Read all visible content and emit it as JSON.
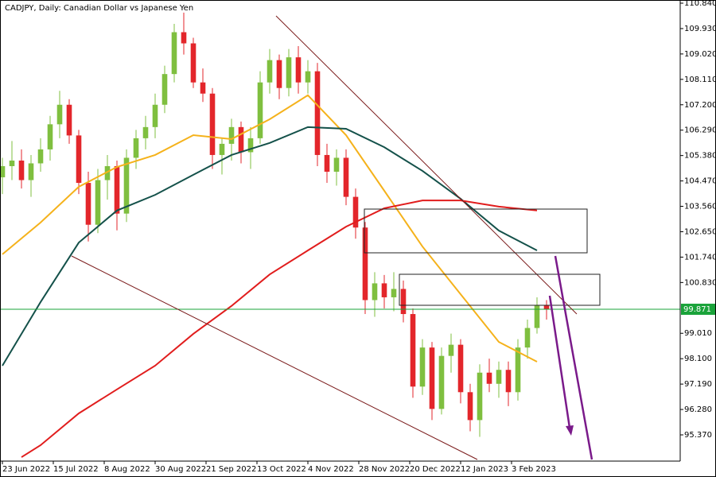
{
  "chart_data": {
    "type": "candlestick",
    "title": "CADJPY, Daily:  Canadian Dollar vs Japanese Yen",
    "up_color": "#7fbf3f",
    "down_color": "#e3262b",
    "xlim": [
      -0.75,
      213
    ],
    "ylim": [
      94.43,
      110.954
    ],
    "xticks": [
      {
        "value": 0,
        "label": "23 Jun 2022"
      },
      {
        "value": 16,
        "label": "15 Jul 2022"
      },
      {
        "value": 32,
        "label": "8 Aug 2022"
      },
      {
        "value": 48,
        "label": "30 Aug 2022"
      },
      {
        "value": 64,
        "label": "21 Sep 2022"
      },
      {
        "value": 80,
        "label": "13 Oct 2022"
      },
      {
        "value": 96,
        "label": "4 Nov 2022"
      },
      {
        "value": 112,
        "label": "28 Nov 2022"
      },
      {
        "value": 128,
        "label": "20 Dec 2022"
      },
      {
        "value": 144,
        "label": "12 Jan 2023"
      },
      {
        "value": 160,
        "label": "3 Feb 2023"
      }
    ],
    "yticks": [
      {
        "value": 110.84,
        "label": "110.840"
      },
      {
        "value": 109.93,
        "label": "109.930"
      },
      {
        "value": 109.02,
        "label": "109.020"
      },
      {
        "value": 108.11,
        "label": "108.110"
      },
      {
        "value": 107.2,
        "label": "107.200"
      },
      {
        "value": 106.29,
        "label": "106.290"
      },
      {
        "value": 105.38,
        "label": "105.380"
      },
      {
        "value": 104.47,
        "label": "104.470"
      },
      {
        "value": 103.56,
        "label": "103.560"
      },
      {
        "value": 102.65,
        "label": "102.650"
      },
      {
        "value": 101.74,
        "label": "101.740"
      },
      {
        "value": 100.83,
        "label": "100.830"
      },
      {
        "value": 99.01,
        "label": "99.010"
      },
      {
        "value": 98.1,
        "label": "98.100"
      },
      {
        "value": 97.19,
        "label": "97.190"
      },
      {
        "value": 96.28,
        "label": "96.280"
      },
      {
        "value": 95.37,
        "label": "95.370"
      }
    ],
    "last_price": {
      "value": 99.871,
      "label": "99.871",
      "color": "#1aa33a"
    },
    "candles": {
      "x": [
        0,
        3,
        6,
        9,
        12,
        15,
        18,
        21,
        24,
        27,
        30,
        33,
        36,
        39,
        42,
        45,
        48,
        51,
        54,
        57,
        60,
        63,
        66,
        69,
        72,
        75,
        78,
        81,
        84,
        87,
        90,
        93,
        96,
        99,
        102,
        105,
        108,
        111,
        114,
        117,
        120,
        123,
        126,
        129,
        132,
        135,
        138,
        141,
        144,
        147,
        150,
        153,
        156,
        159,
        162,
        165,
        168,
        171
      ],
      "open": [
        104.6,
        105.0,
        105.2,
        104.5,
        105.1,
        105.6,
        106.5,
        107.2,
        106.1,
        104.4,
        102.9,
        104.5,
        105.0,
        103.3,
        105.3,
        106.0,
        106.4,
        107.2,
        108.3,
        109.8,
        109.4,
        108.0,
        107.6,
        105.4,
        105.8,
        106.4,
        105.5,
        106.0,
        108.0,
        108.8,
        107.8,
        108.9,
        108.0,
        108.4,
        105.4,
        104.8,
        105.3,
        103.9,
        102.8,
        100.2,
        100.8,
        100.3,
        100.6,
        99.7,
        97.1,
        98.5,
        96.3,
        98.2,
        98.6,
        96.9,
        95.9,
        97.6,
        97.2,
        97.7,
        96.9,
        98.5,
        99.2,
        100.0
      ],
      "high": [
        105.3,
        105.9,
        105.6,
        105.4,
        106.0,
        106.8,
        107.7,
        107.4,
        106.3,
        104.8,
        104.9,
        105.4,
        105.2,
        105.6,
        106.3,
        106.8,
        107.6,
        108.6,
        110.1,
        110.5,
        109.6,
        108.5,
        107.8,
        106.0,
        106.7,
        106.6,
        106.4,
        108.4,
        109.2,
        109.0,
        109.2,
        109.3,
        108.8,
        108.7,
        105.8,
        105.6,
        105.6,
        104.2,
        103.0,
        101.2,
        101.1,
        101.2,
        100.9,
        99.9,
        98.8,
        98.7,
        98.5,
        99.0,
        98.8,
        97.2,
        97.9,
        98.1,
        98.0,
        98.0,
        98.8,
        99.5,
        100.3,
        100.2
      ],
      "low": [
        104.0,
        104.5,
        104.2,
        103.9,
        104.8,
        105.2,
        106.0,
        105.8,
        104.0,
        102.3,
        102.6,
        103.8,
        102.7,
        103.0,
        104.9,
        105.6,
        106.0,
        106.9,
        108.0,
        109.0,
        107.8,
        107.3,
        104.9,
        104.7,
        105.2,
        105.1,
        104.9,
        105.8,
        107.6,
        107.4,
        107.5,
        107.6,
        107.6,
        105.0,
        104.4,
        104.3,
        103.6,
        102.4,
        99.7,
        99.6,
        99.9,
        99.8,
        99.4,
        96.7,
        96.8,
        95.9,
        96.1,
        97.6,
        96.5,
        95.5,
        95.3,
        96.9,
        96.7,
        96.4,
        96.6,
        98.1,
        99.0,
        99.5
      ],
      "close": [
        105.0,
        105.2,
        104.5,
        105.1,
        105.6,
        106.5,
        107.2,
        106.1,
        104.4,
        102.9,
        104.5,
        105.0,
        103.3,
        105.3,
        106.0,
        106.4,
        107.2,
        108.3,
        109.8,
        109.4,
        108.0,
        107.6,
        105.4,
        105.8,
        106.4,
        105.5,
        106.0,
        108.0,
        108.8,
        107.8,
        108.9,
        108.0,
        108.4,
        105.4,
        104.8,
        105.3,
        103.9,
        102.8,
        100.2,
        100.8,
        100.3,
        100.6,
        99.7,
        97.1,
        98.5,
        96.3,
        98.2,
        98.6,
        96.9,
        95.9,
        97.6,
        97.2,
        97.7,
        96.9,
        98.5,
        99.2,
        100.0,
        99.871
      ]
    },
    "series": [
      {
        "color": "#f5b21b",
        "x": [
          0,
          12,
          24,
          36,
          48,
          60,
          72,
          84,
          96,
          108,
          120,
          132,
          144,
          156,
          168
        ],
        "values": [
          101.84,
          102.98,
          104.26,
          104.97,
          105.4,
          106.11,
          105.97,
          106.68,
          107.54,
          106.11,
          104.12,
          102.12,
          100.41,
          98.7,
          97.99
        ]
      },
      {
        "color": "#14514a",
        "x": [
          0,
          12,
          24,
          36,
          48,
          60,
          72,
          84,
          96,
          108,
          120,
          132,
          144,
          156,
          168
        ],
        "values": [
          97.85,
          100.13,
          102.26,
          103.41,
          103.97,
          104.69,
          105.4,
          105.83,
          106.4,
          106.34,
          105.68,
          104.83,
          103.83,
          102.69,
          101.98
        ]
      },
      {
        "color": "#e11d1d",
        "x": [
          6,
          12,
          24,
          36,
          48,
          60,
          72,
          84,
          96,
          108,
          120,
          132,
          144,
          156,
          168
        ],
        "values": [
          94.57,
          95.0,
          96.14,
          97.0,
          97.85,
          98.99,
          99.99,
          101.12,
          101.98,
          102.83,
          103.49,
          103.77,
          103.77,
          103.55,
          103.41
        ]
      }
    ]
  }
}
